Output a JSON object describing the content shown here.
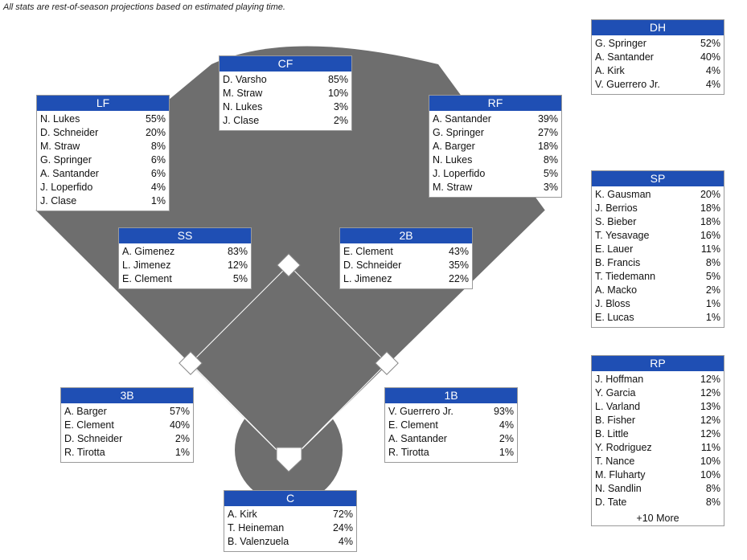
{
  "note": "All stats are rest-of-season projections based on estimated playing time.",
  "colors": {
    "header": "#1f4fb4",
    "field": "#6e6e6e",
    "base": "#ffffff"
  },
  "positions": {
    "CF": {
      "label": "CF",
      "players": [
        {
          "name": "D. Varsho",
          "pct": "85%"
        },
        {
          "name": "M. Straw",
          "pct": "10%"
        },
        {
          "name": "N. Lukes",
          "pct": "3%"
        },
        {
          "name": "J. Clase",
          "pct": "2%"
        }
      ]
    },
    "LF": {
      "label": "LF",
      "players": [
        {
          "name": "N. Lukes",
          "pct": "55%"
        },
        {
          "name": "D. Schneider",
          "pct": "20%"
        },
        {
          "name": "M. Straw",
          "pct": "8%"
        },
        {
          "name": "G. Springer",
          "pct": "6%"
        },
        {
          "name": "A. Santander",
          "pct": "6%"
        },
        {
          "name": "J. Loperfido",
          "pct": "4%"
        },
        {
          "name": "J. Clase",
          "pct": "1%"
        }
      ]
    },
    "RF": {
      "label": "RF",
      "players": [
        {
          "name": "A. Santander",
          "pct": "39%"
        },
        {
          "name": "G. Springer",
          "pct": "27%"
        },
        {
          "name": "A. Barger",
          "pct": "18%"
        },
        {
          "name": "N. Lukes",
          "pct": "8%"
        },
        {
          "name": "J. Loperfido",
          "pct": "5%"
        },
        {
          "name": "M. Straw",
          "pct": "3%"
        }
      ]
    },
    "SS": {
      "label": "SS",
      "players": [
        {
          "name": "A. Gimenez",
          "pct": "83%"
        },
        {
          "name": "L. Jimenez",
          "pct": "12%"
        },
        {
          "name": "E. Clement",
          "pct": "5%"
        }
      ]
    },
    "2B": {
      "label": "2B",
      "players": [
        {
          "name": "E. Clement",
          "pct": "43%"
        },
        {
          "name": "D. Schneider",
          "pct": "35%"
        },
        {
          "name": "L. Jimenez",
          "pct": "22%"
        }
      ]
    },
    "3B": {
      "label": "3B",
      "players": [
        {
          "name": "A. Barger",
          "pct": "57%"
        },
        {
          "name": "E. Clement",
          "pct": "40%"
        },
        {
          "name": "D. Schneider",
          "pct": "2%"
        },
        {
          "name": "R. Tirotta",
          "pct": "1%"
        }
      ]
    },
    "1B": {
      "label": "1B",
      "players": [
        {
          "name": "V. Guerrero Jr.",
          "pct": "93%"
        },
        {
          "name": "E. Clement",
          "pct": "4%"
        },
        {
          "name": "A. Santander",
          "pct": "2%"
        },
        {
          "name": "R. Tirotta",
          "pct": "1%"
        }
      ]
    },
    "C": {
      "label": "C",
      "players": [
        {
          "name": "A. Kirk",
          "pct": "72%"
        },
        {
          "name": "T. Heineman",
          "pct": "24%"
        },
        {
          "name": "B. Valenzuela",
          "pct": "4%"
        }
      ]
    },
    "DH": {
      "label": "DH",
      "players": [
        {
          "name": "G. Springer",
          "pct": "52%"
        },
        {
          "name": "A. Santander",
          "pct": "40%"
        },
        {
          "name": "A. Kirk",
          "pct": "4%"
        },
        {
          "name": "V. Guerrero Jr.",
          "pct": "4%"
        }
      ]
    },
    "SP": {
      "label": "SP",
      "players": [
        {
          "name": "K. Gausman",
          "pct": "20%"
        },
        {
          "name": "J. Berrios",
          "pct": "18%"
        },
        {
          "name": "S. Bieber",
          "pct": "18%"
        },
        {
          "name": "T. Yesavage",
          "pct": "16%"
        },
        {
          "name": "E. Lauer",
          "pct": "11%"
        },
        {
          "name": "B. Francis",
          "pct": "8%"
        },
        {
          "name": "T. Tiedemann",
          "pct": "5%"
        },
        {
          "name": "A. Macko",
          "pct": "2%"
        },
        {
          "name": "J. Bloss",
          "pct": "1%"
        },
        {
          "name": "E. Lucas",
          "pct": "1%"
        }
      ]
    },
    "RP": {
      "label": "RP",
      "players": [
        {
          "name": "J. Hoffman",
          "pct": "12%"
        },
        {
          "name": "Y. Garcia",
          "pct": "12%"
        },
        {
          "name": "L. Varland",
          "pct": "13%"
        },
        {
          "name": "B. Fisher",
          "pct": "12%"
        },
        {
          "name": "B. Little",
          "pct": "12%"
        },
        {
          "name": "Y. Rodriguez",
          "pct": "11%"
        },
        {
          "name": "T. Nance",
          "pct": "10%"
        },
        {
          "name": "M. Fluharty",
          "pct": "10%"
        },
        {
          "name": "N. Sandlin",
          "pct": "8%"
        },
        {
          "name": "D. Tate",
          "pct": "8%"
        }
      ],
      "more": "+10 More"
    }
  }
}
